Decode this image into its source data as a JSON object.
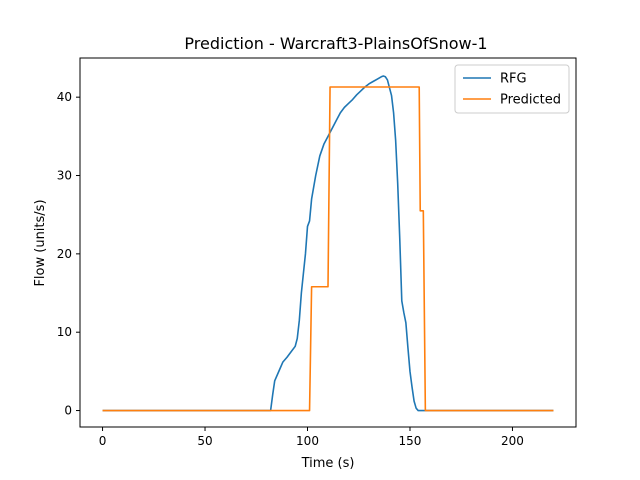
{
  "chart_data": {
    "type": "line",
    "title": "Prediction - Warcraft3-PlainsOfSnow-1",
    "xlabel": "Time (s)",
    "ylabel": "Flow (units/s)",
    "xlim": [
      -11,
      231
    ],
    "ylim": [
      -2.1,
      45
    ],
    "xticks": [
      0,
      50,
      100,
      150,
      200
    ],
    "yticks": [
      0,
      10,
      20,
      30,
      40
    ],
    "grid": false,
    "legend_position": "top-right",
    "series": [
      {
        "name": "RFG",
        "color": "#1f77b4",
        "points": [
          [
            0,
            0
          ],
          [
            82,
            0
          ],
          [
            83,
            2
          ],
          [
            84,
            3.8
          ],
          [
            86,
            5
          ],
          [
            88,
            6.2
          ],
          [
            90,
            6.8
          ],
          [
            92,
            7.5
          ],
          [
            94,
            8.2
          ],
          [
            95,
            9.2
          ],
          [
            96,
            11.5
          ],
          [
            97,
            15
          ],
          [
            98,
            17.5
          ],
          [
            99,
            20
          ],
          [
            100,
            23.5
          ],
          [
            101,
            24.2
          ],
          [
            102,
            27
          ],
          [
            104,
            30
          ],
          [
            106,
            32.5
          ],
          [
            108,
            34
          ],
          [
            110,
            35
          ],
          [
            112,
            36
          ],
          [
            114,
            37
          ],
          [
            116,
            38
          ],
          [
            118,
            38.7
          ],
          [
            120,
            39.2
          ],
          [
            122,
            39.7
          ],
          [
            124,
            40.3
          ],
          [
            126,
            40.8
          ],
          [
            128,
            41.3
          ],
          [
            130,
            41.7
          ],
          [
            132,
            42
          ],
          [
            134,
            42.3
          ],
          [
            136,
            42.6
          ],
          [
            137,
            42.7
          ],
          [
            138,
            42.6
          ],
          [
            139,
            42.2
          ],
          [
            140,
            41.2
          ],
          [
            141,
            40.2
          ],
          [
            142,
            38
          ],
          [
            143,
            34.5
          ],
          [
            144,
            29
          ],
          [
            145,
            22
          ],
          [
            146,
            14
          ],
          [
            147,
            12.5
          ],
          [
            148,
            11.2
          ],
          [
            149,
            8
          ],
          [
            150,
            5
          ],
          [
            151,
            3
          ],
          [
            152,
            1.2
          ],
          [
            153,
            0.3
          ],
          [
            154,
            0
          ],
          [
            220,
            0
          ]
        ]
      },
      {
        "name": "Predicted",
        "color": "#ff7f0e",
        "points": [
          [
            0,
            0
          ],
          [
            101,
            0
          ],
          [
            102,
            15.8
          ],
          [
            110,
            15.8
          ],
          [
            111,
            41.3
          ],
          [
            154.5,
            41.3
          ],
          [
            155,
            25.5
          ],
          [
            156.5,
            25.5
          ],
          [
            157.5,
            0
          ],
          [
            220,
            0
          ]
        ]
      }
    ]
  }
}
